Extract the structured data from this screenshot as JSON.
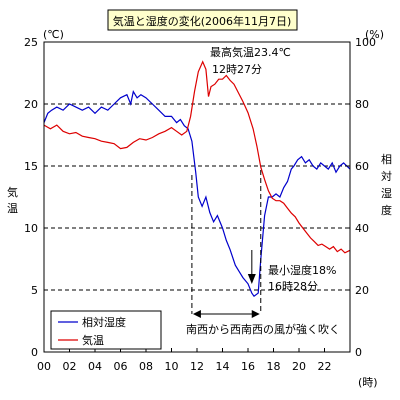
{
  "chart_data": {
    "type": "line",
    "title": "気温と湿度の変化(2006年11月7日)",
    "x_unit": "(時)",
    "x_ticks": [
      "00",
      "02",
      "04",
      "06",
      "08",
      "10",
      "12",
      "14",
      "16",
      "18",
      "20",
      "22"
    ],
    "x_range": [
      0,
      24
    ],
    "y_left": {
      "label_chars": [
        "気",
        "温"
      ],
      "unit": "(℃)",
      "ticks": [
        "0",
        "5",
        "10",
        "15",
        "20",
        "25"
      ],
      "range": [
        0,
        25
      ]
    },
    "y_right": {
      "label_chars": [
        "相",
        "対",
        "湿",
        "度"
      ],
      "unit": "(%)",
      "ticks": [
        "0",
        "20",
        "40",
        "60",
        "80",
        "100"
      ],
      "range": [
        0,
        100
      ]
    },
    "grid": {
      "horizontal_dashed_at_left_values": [
        5,
        10,
        15,
        20
      ]
    },
    "legend": {
      "placement": "bottom-left"
    },
    "series": [
      {
        "name": "相対湿度",
        "axis": "right",
        "color": "#0000cc",
        "points": [
          [
            0.0,
            74
          ],
          [
            0.3,
            77
          ],
          [
            0.6,
            78
          ],
          [
            1.0,
            79
          ],
          [
            1.5,
            78
          ],
          [
            2.0,
            80
          ],
          [
            2.5,
            79
          ],
          [
            3.0,
            78
          ],
          [
            3.5,
            79
          ],
          [
            4.0,
            77
          ],
          [
            4.5,
            79
          ],
          [
            5.0,
            78
          ],
          [
            5.5,
            80
          ],
          [
            6.0,
            82
          ],
          [
            6.5,
            83
          ],
          [
            6.8,
            80
          ],
          [
            7.0,
            84
          ],
          [
            7.3,
            82
          ],
          [
            7.6,
            83
          ],
          [
            8.0,
            82
          ],
          [
            8.5,
            80
          ],
          [
            9.0,
            78
          ],
          [
            9.5,
            76
          ],
          [
            10.0,
            76
          ],
          [
            10.4,
            74
          ],
          [
            10.7,
            75
          ],
          [
            11.0,
            73
          ],
          [
            11.3,
            72
          ],
          [
            11.6,
            68
          ],
          [
            11.9,
            58
          ],
          [
            12.1,
            50
          ],
          [
            12.4,
            47
          ],
          [
            12.7,
            50
          ],
          [
            13.0,
            45
          ],
          [
            13.3,
            42
          ],
          [
            13.6,
            44
          ],
          [
            14.0,
            40
          ],
          [
            14.3,
            36
          ],
          [
            14.6,
            33
          ],
          [
            15.0,
            28
          ],
          [
            15.3,
            26
          ],
          [
            15.6,
            24
          ],
          [
            16.0,
            22
          ],
          [
            16.3,
            19
          ],
          [
            16.47,
            18
          ],
          [
            16.8,
            19
          ],
          [
            17.0,
            30
          ],
          [
            17.3,
            44
          ],
          [
            17.6,
            50
          ],
          [
            17.9,
            50
          ],
          [
            18.2,
            51
          ],
          [
            18.5,
            50
          ],
          [
            18.8,
            53
          ],
          [
            19.1,
            55
          ],
          [
            19.4,
            59
          ],
          [
            19.6,
            60
          ],
          [
            19.9,
            62
          ],
          [
            20.2,
            63
          ],
          [
            20.5,
            61
          ],
          [
            20.8,
            62
          ],
          [
            21.1,
            60
          ],
          [
            21.4,
            59
          ],
          [
            21.7,
            61
          ],
          [
            22.0,
            60
          ],
          [
            22.3,
            59
          ],
          [
            22.6,
            61
          ],
          [
            22.9,
            58
          ],
          [
            23.2,
            60
          ],
          [
            23.5,
            61
          ],
          [
            24.0,
            59
          ]
        ]
      },
      {
        "name": "気温",
        "axis": "left",
        "color": "#dd0000",
        "points": [
          [
            0.0,
            18.3
          ],
          [
            0.5,
            18.0
          ],
          [
            1.0,
            18.3
          ],
          [
            1.5,
            17.8
          ],
          [
            2.0,
            17.6
          ],
          [
            2.5,
            17.7
          ],
          [
            3.0,
            17.4
          ],
          [
            3.5,
            17.3
          ],
          [
            4.0,
            17.2
          ],
          [
            4.5,
            17.0
          ],
          [
            5.0,
            16.9
          ],
          [
            5.5,
            16.8
          ],
          [
            6.0,
            16.4
          ],
          [
            6.5,
            16.5
          ],
          [
            7.0,
            16.9
          ],
          [
            7.5,
            17.2
          ],
          [
            8.0,
            17.1
          ],
          [
            8.5,
            17.3
          ],
          [
            9.0,
            17.6
          ],
          [
            9.5,
            17.8
          ],
          [
            10.0,
            18.1
          ],
          [
            10.4,
            17.8
          ],
          [
            10.8,
            17.5
          ],
          [
            11.2,
            17.8
          ],
          [
            11.5,
            19.0
          ],
          [
            11.8,
            21.0
          ],
          [
            12.1,
            22.6
          ],
          [
            12.45,
            23.4
          ],
          [
            12.7,
            22.8
          ],
          [
            12.9,
            20.6
          ],
          [
            13.1,
            21.4
          ],
          [
            13.4,
            21.6
          ],
          [
            13.7,
            22.0
          ],
          [
            14.0,
            22.0
          ],
          [
            14.3,
            22.3
          ],
          [
            14.6,
            21.9
          ],
          [
            14.9,
            21.6
          ],
          [
            15.2,
            21.0
          ],
          [
            15.6,
            20.2
          ],
          [
            16.0,
            19.3
          ],
          [
            16.4,
            18.0
          ],
          [
            16.7,
            16.6
          ],
          [
            17.0,
            14.9
          ],
          [
            17.3,
            13.9
          ],
          [
            17.6,
            13.0
          ],
          [
            17.9,
            12.4
          ],
          [
            18.2,
            12.2
          ],
          [
            18.5,
            12.2
          ],
          [
            18.8,
            12.0
          ],
          [
            19.1,
            11.6
          ],
          [
            19.4,
            11.2
          ],
          [
            19.7,
            10.9
          ],
          [
            20.0,
            10.4
          ],
          [
            20.3,
            10.0
          ],
          [
            20.6,
            9.6
          ],
          [
            20.9,
            9.2
          ],
          [
            21.2,
            8.9
          ],
          [
            21.5,
            8.6
          ],
          [
            21.8,
            8.7
          ],
          [
            22.1,
            8.5
          ],
          [
            22.4,
            8.3
          ],
          [
            22.7,
            8.5
          ],
          [
            23.0,
            8.1
          ],
          [
            23.3,
            8.3
          ],
          [
            23.6,
            8.0
          ],
          [
            24.0,
            8.2
          ]
        ]
      }
    ],
    "annotations": {
      "max_temp": [
        "最高気温23.4℃",
        "12時27分"
      ],
      "min_humidity": [
        "最小湿度18%",
        "16時28分"
      ],
      "wind": "南西から西南西の風が強く吹く",
      "wind_span": [
        11.6,
        17.0
      ],
      "arrow_x": 16.3
    }
  }
}
